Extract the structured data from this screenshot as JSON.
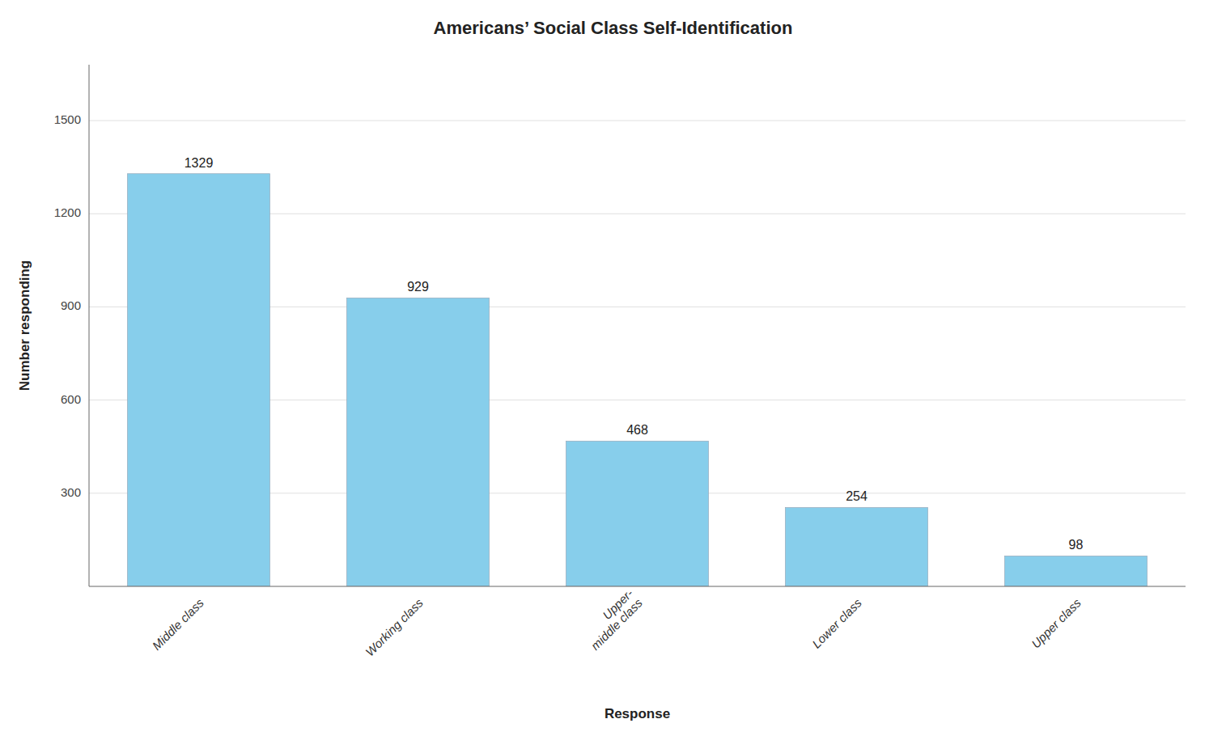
{
  "chart_data": {
    "type": "bar",
    "title": "Americans’ Social Class Self-Identification",
    "categories": [
      "Middle class",
      "Working class",
      "Upper-\nmiddle class",
      "Lower class",
      "Upper class"
    ],
    "values": [
      1329,
      929,
      468,
      254,
      98
    ],
    "color": "#87CEEB",
    "xlabel": "Response",
    "ylabel": "Number responding",
    "ylim": [
      0,
      1680
    ],
    "yticks": [
      300,
      600,
      900,
      1200,
      1500
    ],
    "grid": true,
    "data_labels": true
  }
}
